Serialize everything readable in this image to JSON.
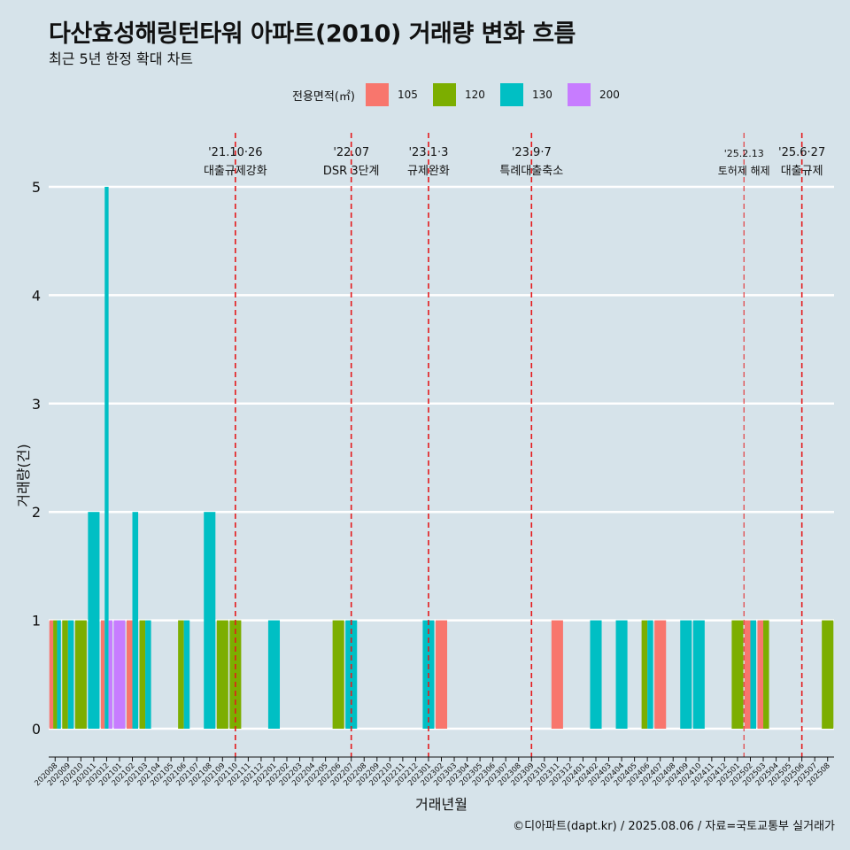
{
  "title": "다산효성해링턴타워 아파트(2010) 거래량 변화 흐름",
  "subtitle": "최근 5년 한정 확대 차트",
  "caption": "©디아파트(dapt.kr) / 2025.08.06 / 자료=국토교통부 실거래가",
  "legend_title": "전용면적(㎡)",
  "colors": {
    "105": "#f8766d",
    "120": "#7cae00",
    "130": "#00bfc4",
    "200": "#c77cff",
    "event_line": "#e41a1c",
    "grid": "#ffffff"
  },
  "chart_data": {
    "type": "bar",
    "xlabel": "거래년월",
    "ylabel": "거래량(건)",
    "ylim": [
      0,
      5
    ],
    "yticks": [
      0,
      1,
      2,
      3,
      4,
      5
    ],
    "grid": true,
    "legend_position": "top",
    "categories": [
      "202008",
      "202009",
      "202010",
      "202011",
      "202012",
      "202101",
      "202102",
      "202103",
      "202104",
      "202105",
      "202106",
      "202107",
      "202108",
      "202109",
      "202110",
      "202111",
      "202112",
      "202201",
      "202202",
      "202203",
      "202204",
      "202205",
      "202206",
      "202207",
      "202208",
      "202209",
      "202210",
      "202211",
      "202212",
      "202301",
      "202302",
      "202303",
      "202304",
      "202305",
      "202306",
      "202307",
      "202308",
      "202309",
      "202310",
      "202311",
      "202312",
      "202401",
      "202402",
      "202403",
      "202404",
      "202405",
      "202406",
      "202407",
      "202408",
      "202409",
      "202410",
      "202411",
      "202412",
      "202501",
      "202502",
      "202503",
      "202504",
      "202505",
      "202506",
      "202507",
      "202508"
    ],
    "series": [
      {
        "name": "105",
        "values": [
          1,
          0,
          0,
          0,
          1,
          0,
          1,
          0,
          0,
          0,
          0,
          0,
          0,
          0,
          0,
          0,
          0,
          0,
          0,
          0,
          0,
          0,
          0,
          0,
          0,
          0,
          0,
          0,
          0,
          0,
          1,
          0,
          0,
          0,
          0,
          0,
          0,
          0,
          0,
          1,
          0,
          0,
          0,
          0,
          0,
          0,
          0,
          1,
          0,
          0,
          0,
          0,
          0,
          0,
          1,
          1,
          0,
          0,
          0,
          0,
          0
        ]
      },
      {
        "name": "120",
        "values": [
          1,
          1,
          1,
          0,
          0,
          0,
          0,
          1,
          0,
          0,
          1,
          0,
          0,
          1,
          1,
          0,
          0,
          0,
          0,
          0,
          0,
          0,
          1,
          0,
          0,
          0,
          0,
          0,
          0,
          0,
          0,
          0,
          0,
          0,
          0,
          0,
          0,
          0,
          0,
          0,
          0,
          0,
          0,
          0,
          0,
          0,
          1,
          0,
          0,
          0,
          0,
          0,
          0,
          1,
          0,
          1,
          0,
          0,
          0,
          0,
          1
        ]
      },
      {
        "name": "130",
        "values": [
          1,
          1,
          0,
          2,
          5,
          0,
          2,
          1,
          0,
          0,
          1,
          0,
          2,
          0,
          0,
          0,
          0,
          1,
          0,
          0,
          0,
          0,
          0,
          1,
          0,
          0,
          0,
          0,
          0,
          1,
          0,
          0,
          0,
          0,
          0,
          0,
          0,
          0,
          0,
          0,
          0,
          0,
          1,
          0,
          1,
          0,
          1,
          0,
          0,
          1,
          1,
          0,
          0,
          0,
          1,
          0,
          0,
          0,
          0,
          0,
          0
        ]
      },
      {
        "name": "200",
        "values": [
          0,
          0,
          0,
          0,
          1,
          1,
          0,
          0,
          0,
          0,
          0,
          0,
          0,
          0,
          0,
          0,
          0,
          0,
          0,
          0,
          0,
          0,
          0,
          0,
          0,
          0,
          0,
          0,
          0,
          0,
          0,
          0,
          0,
          0,
          0,
          0,
          0,
          0,
          0,
          0,
          0,
          0,
          0,
          0,
          0,
          0,
          0,
          0,
          0,
          0,
          0,
          0,
          0,
          0,
          0,
          0,
          0,
          0,
          0,
          0,
          0
        ]
      }
    ],
    "annotations": [
      {
        "x": "202110",
        "date": "'21.10·26",
        "label": "대출규제강화"
      },
      {
        "x": "202207",
        "date": "'22.07",
        "label": "DSR 3단계"
      },
      {
        "x": "202301",
        "date": "'23.1·3",
        "label": "규제완화"
      },
      {
        "x": "202309",
        "date": "'23.9·7",
        "label": "특례대출축소"
      },
      {
        "x": "202502",
        "date": "'25.2.13",
        "label": "토허제 해제"
      },
      {
        "x": "202506",
        "date": "'25.6·27",
        "label": "대출규제"
      }
    ]
  }
}
